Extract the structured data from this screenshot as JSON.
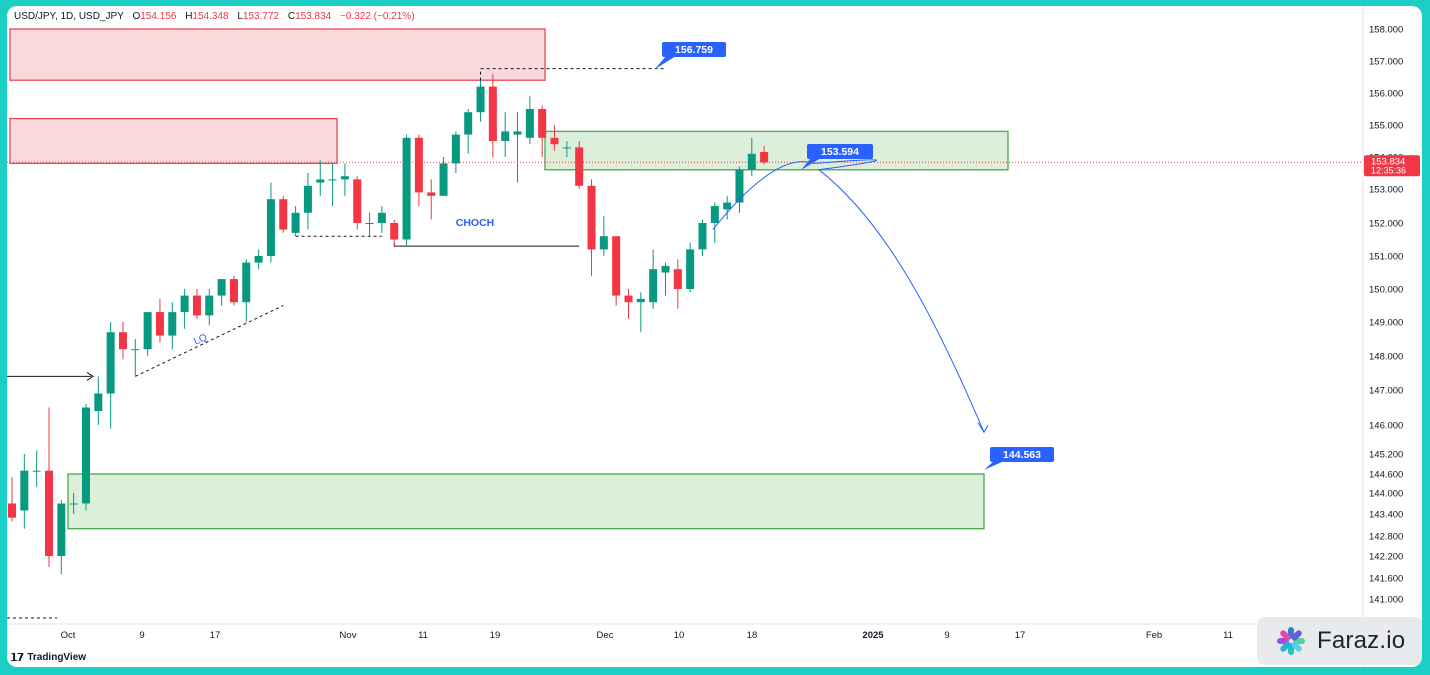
{
  "header": {
    "symbol": "USD/JPY, 1D, USD_JPY",
    "open_label": "O",
    "open": "154.156",
    "high_label": "H",
    "high": "154.348",
    "low_label": "L",
    "low": "153.772",
    "close_label": "C",
    "close": "153.834",
    "change": "−0.322 (−0.21%)"
  },
  "branding": {
    "tradingview": "TradingView",
    "watermark": "Faraz.io"
  },
  "colors": {
    "up": "#089981",
    "down": "#f23645",
    "supply_fill": "#f8d2d6",
    "supply_stroke": "#e8475a",
    "demand_fill": "#d5ecd4",
    "demand_stroke": "#49a84a",
    "callout": "#2962ff",
    "path": "#2962ff",
    "price_label": "#f23645"
  },
  "chart_data": {
    "type": "candlestick",
    "title": "USD/JPY, 1D, USD_JPY",
    "ylim": [
      140.6,
      158.4
    ],
    "y_ticks": [
      "158.000",
      "157.000",
      "156.000",
      "155.000",
      "154.000",
      "153.000",
      "152.000",
      "151.000",
      "150.000",
      "149.000",
      "148.000",
      "147.000",
      "146.000",
      "145.200",
      "144.600",
      "144.000",
      "143.400",
      "142.800",
      "142.200",
      "141.600",
      "141.000"
    ],
    "x_ticks": [
      "Oct",
      "9",
      "17",
      "Nov",
      "11",
      "19",
      "Dec",
      "10",
      "18",
      "2025",
      "9",
      "17",
      "Feb",
      "11"
    ],
    "candles": [
      {
        "o": 143.7,
        "h": 144.5,
        "l": 143.2,
        "c": 143.3
      },
      {
        "o": 143.5,
        "h": 145.2,
        "l": 143.0,
        "c": 144.7
      },
      {
        "o": 144.7,
        "h": 145.3,
        "l": 144.2,
        "c": 144.7
      },
      {
        "o": 144.7,
        "h": 146.5,
        "l": 141.9,
        "c": 142.2
      },
      {
        "o": 142.2,
        "h": 143.8,
        "l": 141.7,
        "c": 143.7
      },
      {
        "o": 143.7,
        "h": 144.0,
        "l": 143.4,
        "c": 143.7
      },
      {
        "o": 143.7,
        "h": 146.6,
        "l": 143.5,
        "c": 146.5
      },
      {
        "o": 146.4,
        "h": 147.4,
        "l": 146.0,
        "c": 146.9
      },
      {
        "o": 146.9,
        "h": 149.0,
        "l": 145.9,
        "c": 148.7
      },
      {
        "o": 148.7,
        "h": 149.0,
        "l": 147.9,
        "c": 148.2
      },
      {
        "o": 148.2,
        "h": 148.5,
        "l": 147.4,
        "c": 148.2
      },
      {
        "o": 148.2,
        "h": 149.3,
        "l": 148.0,
        "c": 149.3
      },
      {
        "o": 149.3,
        "h": 149.7,
        "l": 148.4,
        "c": 148.6
      },
      {
        "o": 148.6,
        "h": 149.6,
        "l": 148.2,
        "c": 149.3
      },
      {
        "o": 149.3,
        "h": 150.0,
        "l": 148.8,
        "c": 149.8
      },
      {
        "o": 149.8,
        "h": 150.0,
        "l": 149.1,
        "c": 149.2
      },
      {
        "o": 149.2,
        "h": 150.0,
        "l": 148.9,
        "c": 149.8
      },
      {
        "o": 149.8,
        "h": 150.3,
        "l": 149.5,
        "c": 150.3
      },
      {
        "o": 150.3,
        "h": 150.4,
        "l": 149.5,
        "c": 149.6
      },
      {
        "o": 149.6,
        "h": 150.9,
        "l": 149.0,
        "c": 150.8
      },
      {
        "o": 150.8,
        "h": 151.2,
        "l": 150.6,
        "c": 151.0
      },
      {
        "o": 151.0,
        "h": 153.2,
        "l": 150.8,
        "c": 152.7
      },
      {
        "o": 152.7,
        "h": 152.8,
        "l": 151.7,
        "c": 151.8
      },
      {
        "o": 151.7,
        "h": 152.5,
        "l": 151.6,
        "c": 152.3
      },
      {
        "o": 152.3,
        "h": 153.5,
        "l": 151.8,
        "c": 153.1
      },
      {
        "o": 153.2,
        "h": 153.9,
        "l": 152.8,
        "c": 153.3
      },
      {
        "o": 153.3,
        "h": 153.8,
        "l": 152.5,
        "c": 153.3
      },
      {
        "o": 153.3,
        "h": 153.8,
        "l": 152.8,
        "c": 153.4
      },
      {
        "o": 153.3,
        "h": 153.4,
        "l": 151.8,
        "c": 152.0
      },
      {
        "o": 152.0,
        "h": 152.3,
        "l": 151.6,
        "c": 152.0
      },
      {
        "o": 152.0,
        "h": 152.5,
        "l": 151.7,
        "c": 152.3
      },
      {
        "o": 152.0,
        "h": 152.1,
        "l": 151.3,
        "c": 151.5
      },
      {
        "o": 151.5,
        "h": 154.7,
        "l": 151.3,
        "c": 154.6
      },
      {
        "o": 154.6,
        "h": 154.7,
        "l": 152.5,
        "c": 152.9
      },
      {
        "o": 152.9,
        "h": 153.3,
        "l": 152.1,
        "c": 152.8
      },
      {
        "o": 152.8,
        "h": 154.0,
        "l": 152.8,
        "c": 153.8
      },
      {
        "o": 153.8,
        "h": 154.8,
        "l": 153.5,
        "c": 154.7
      },
      {
        "o": 154.7,
        "h": 155.5,
        "l": 154.1,
        "c": 155.4
      },
      {
        "o": 155.4,
        "h": 156.4,
        "l": 155.1,
        "c": 156.2
      },
      {
        "o": 156.2,
        "h": 156.6,
        "l": 154.0,
        "c": 154.5
      },
      {
        "o": 154.5,
        "h": 155.4,
        "l": 154.0,
        "c": 154.8
      },
      {
        "o": 154.7,
        "h": 155.4,
        "l": 153.2,
        "c": 154.8
      },
      {
        "o": 154.6,
        "h": 155.9,
        "l": 154.4,
        "c": 155.5
      },
      {
        "o": 155.5,
        "h": 155.6,
        "l": 154.0,
        "c": 154.6
      },
      {
        "o": 154.6,
        "h": 155.0,
        "l": 154.2,
        "c": 154.4
      },
      {
        "o": 154.3,
        "h": 154.5,
        "l": 154.0,
        "c": 154.3
      },
      {
        "o": 154.3,
        "h": 154.5,
        "l": 153.0,
        "c": 153.1
      },
      {
        "o": 153.1,
        "h": 153.3,
        "l": 150.4,
        "c": 151.2
      },
      {
        "o": 151.2,
        "h": 152.2,
        "l": 151.0,
        "c": 151.6
      },
      {
        "o": 151.6,
        "h": 151.6,
        "l": 149.5,
        "c": 149.8
      },
      {
        "o": 149.8,
        "h": 150.0,
        "l": 149.1,
        "c": 149.6
      },
      {
        "o": 149.6,
        "h": 149.9,
        "l": 148.7,
        "c": 149.7
      },
      {
        "o": 149.6,
        "h": 151.2,
        "l": 149.4,
        "c": 150.6
      },
      {
        "o": 150.5,
        "h": 150.8,
        "l": 149.8,
        "c": 150.7
      },
      {
        "o": 150.6,
        "h": 150.9,
        "l": 149.4,
        "c": 150.0
      },
      {
        "o": 150.0,
        "h": 151.4,
        "l": 149.9,
        "c": 151.2
      },
      {
        "o": 151.2,
        "h": 152.1,
        "l": 151.0,
        "c": 152.0
      },
      {
        "o": 152.0,
        "h": 152.6,
        "l": 151.4,
        "c": 152.5
      },
      {
        "o": 152.4,
        "h": 152.8,
        "l": 152.1,
        "c": 152.6
      },
      {
        "o": 152.6,
        "h": 153.7,
        "l": 152.3,
        "c": 153.6
      },
      {
        "o": 153.6,
        "h": 154.6,
        "l": 153.4,
        "c": 154.1
      },
      {
        "o": 154.156,
        "h": 154.348,
        "l": 153.772,
        "c": 153.834
      }
    ],
    "current_price": "153.834",
    "countdown": "12:35:36",
    "zones": [
      {
        "kind": "supply",
        "top": 158.0,
        "bottom": 156.4
      },
      {
        "kind": "supply",
        "top": 155.2,
        "bottom": 153.8
      },
      {
        "kind": "demand",
        "top": 154.8,
        "bottom": 153.6
      },
      {
        "kind": "demand",
        "top": 144.6,
        "bottom": 143.0
      }
    ],
    "annotations": {
      "choch": "CHOCH",
      "lq": "LQ",
      "target_high": "156.759",
      "mid_level": "153.594",
      "target_low": "144.563"
    }
  }
}
